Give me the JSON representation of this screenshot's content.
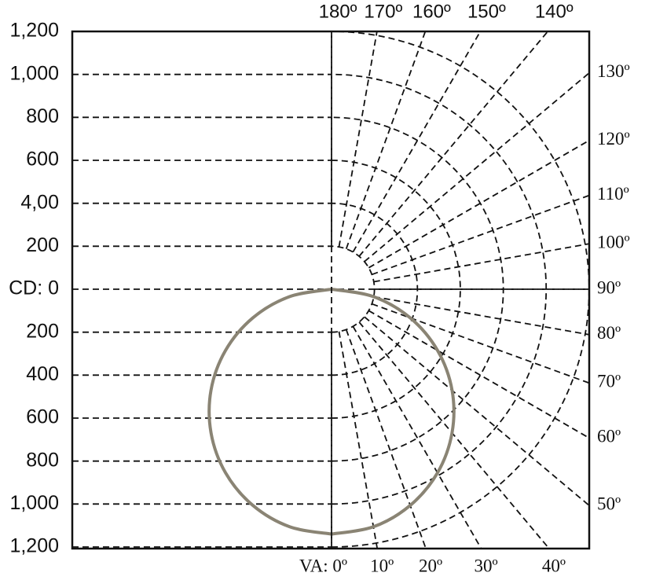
{
  "chart_data": {
    "type": "polar",
    "ylim": [
      -1200,
      1200
    ],
    "yticks": [
      {
        "value": 1200,
        "label": "1,200"
      },
      {
        "value": 1000,
        "label": "1,000"
      },
      800,
      600,
      {
        "value": 400,
        "label": "4,00"
      },
      200,
      {
        "value": 0,
        "label": "CD: 0"
      },
      {
        "value": -200,
        "label": "200"
      },
      {
        "value": -400,
        "label": "400"
      },
      {
        "value": -600,
        "label": "600"
      },
      {
        "value": -800,
        "label": "800"
      },
      {
        "value": -1000,
        "label": "1,000"
      },
      {
        "value": -1200,
        "label": "1,200"
      }
    ],
    "angle_ticks": [
      {
        "value": 0,
        "label": "VA: 0º"
      },
      {
        "value": 10,
        "label": "10º"
      },
      {
        "value": 20,
        "label": "20º"
      },
      {
        "value": 30,
        "label": "30º"
      },
      {
        "value": 40,
        "label": "40º"
      },
      {
        "value": 50,
        "label": "50º"
      },
      {
        "value": 60,
        "label": "60º"
      },
      {
        "value": 70,
        "label": "70º"
      },
      {
        "value": 80,
        "label": "80º"
      },
      {
        "value": 90,
        "label": "90º"
      },
      {
        "value": 100,
        "label": "100º"
      },
      {
        "value": 110,
        "label": "110º"
      },
      {
        "value": 120,
        "label": "120º"
      },
      {
        "value": 130,
        "label": "130º"
      },
      {
        "value": 140,
        "label": "140º"
      },
      {
        "value": 150,
        "label": "150º"
      },
      {
        "value": 160,
        "label": "160º"
      },
      {
        "value": 170,
        "label": "170º"
      },
      {
        "value": 180,
        "label": "180º"
      }
    ],
    "series": [
      {
        "color": "#8a8474",
        "x": [
          0,
          10,
          20,
          30,
          40,
          50,
          60,
          70,
          80,
          90
        ],
        "values": [
          1140,
          1123,
          1071,
          987,
          873,
          733,
          570,
          390,
          198,
          0
        ]
      }
    ]
  }
}
